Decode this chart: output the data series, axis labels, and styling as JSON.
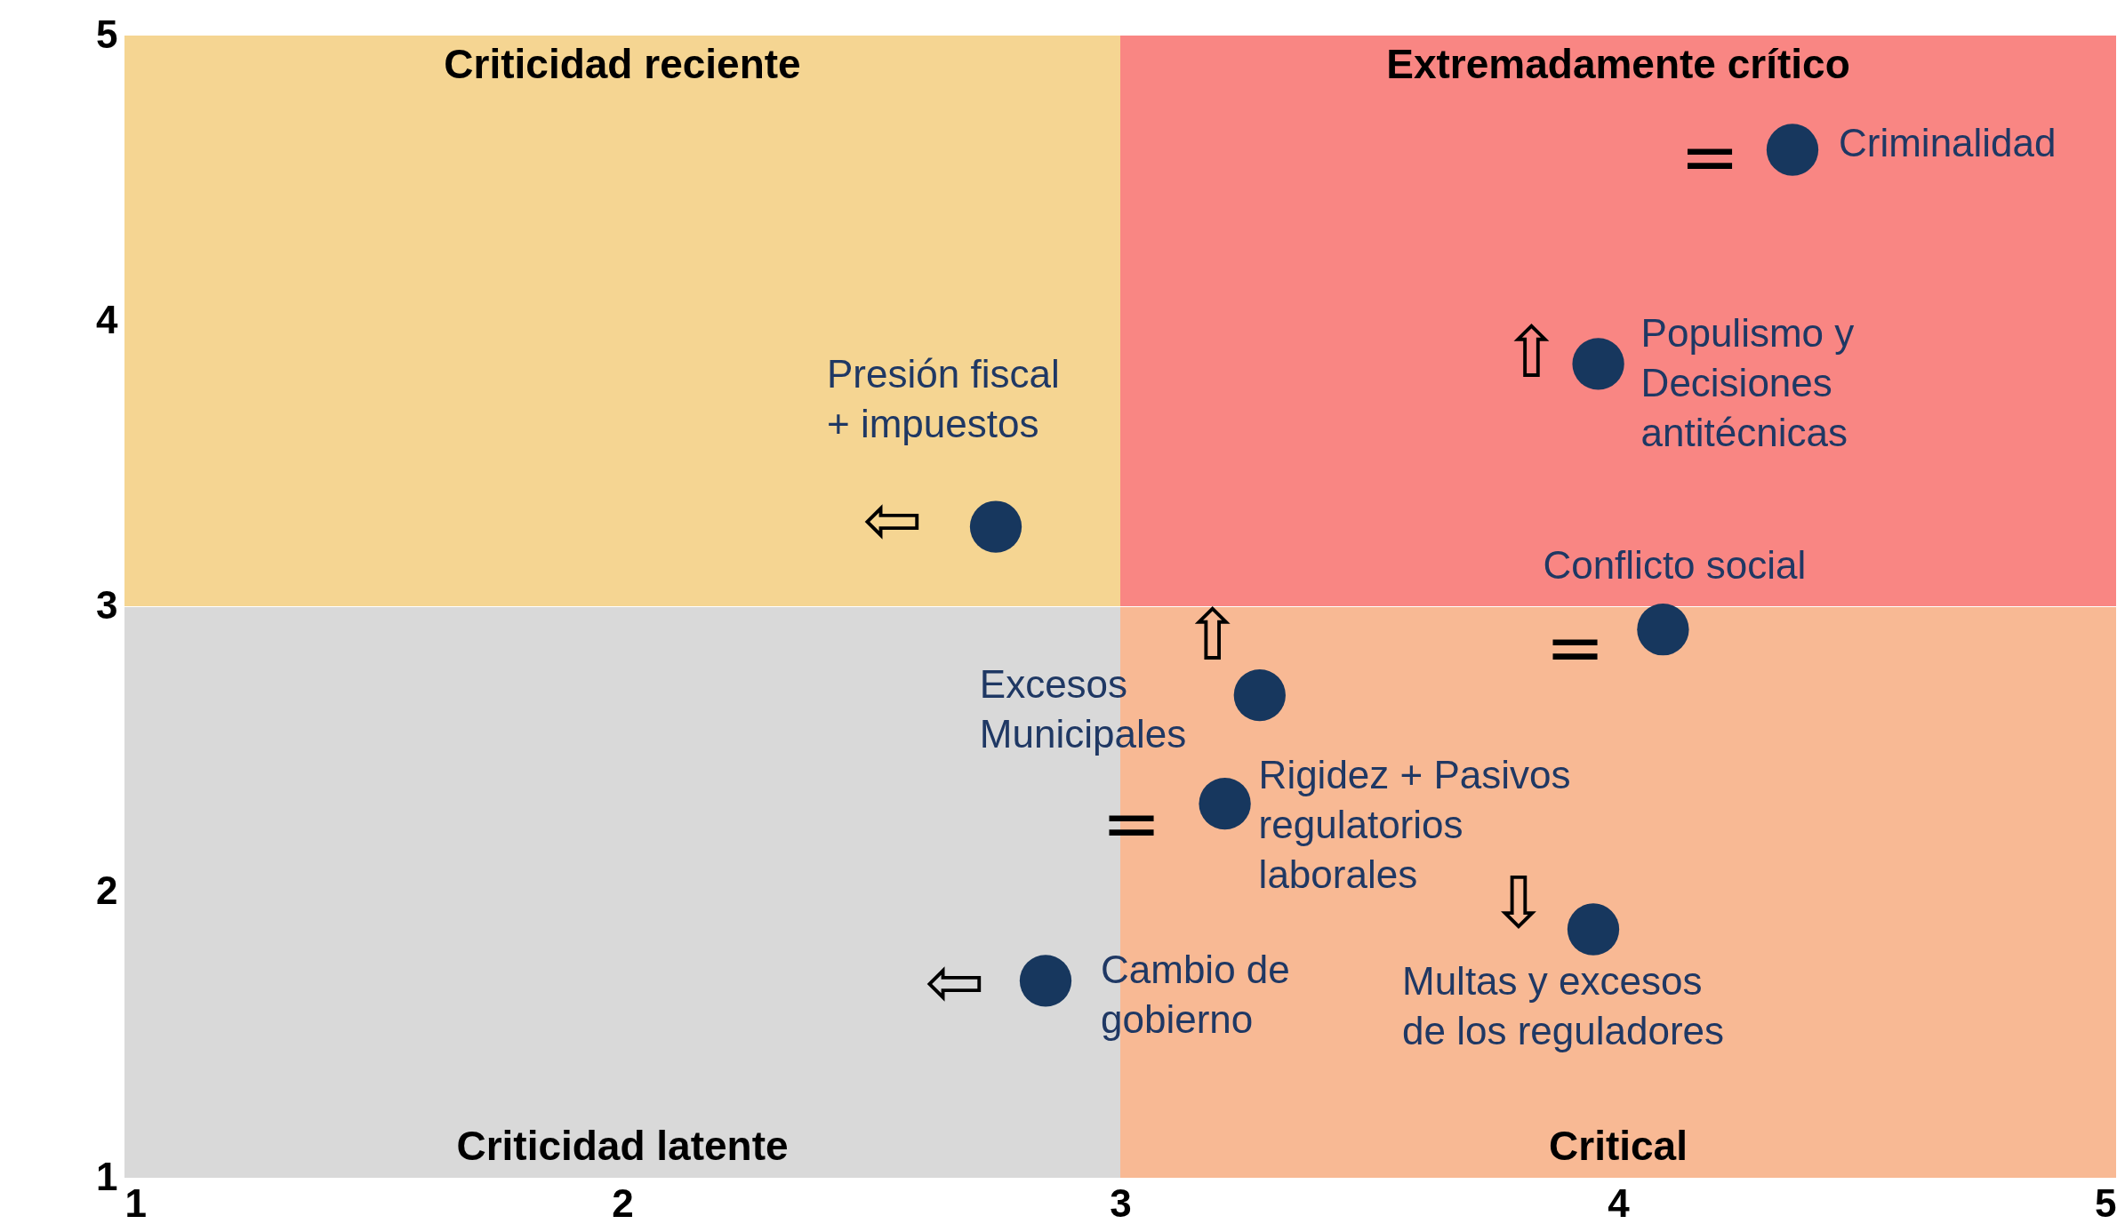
{
  "chart_data": {
    "type": "scatter",
    "xlim": [
      1,
      5
    ],
    "ylim": [
      1,
      5
    ],
    "xticks": [
      1,
      2,
      3,
      4,
      5
    ],
    "yticks": [
      1,
      2,
      3,
      4,
      5
    ],
    "grid": false,
    "marker": "circle",
    "ref_lines": [
      {
        "axis": "y",
        "value": 3,
        "color": "#ffffff"
      }
    ],
    "series": [
      {
        "color": "#17375e",
        "x": [
          4.35,
          3.96,
          2.75,
          4.09,
          3.28,
          3.21,
          3.95,
          2.85
        ],
        "values": [
          4.6,
          3.85,
          3.28,
          2.92,
          2.69,
          2.31,
          1.87,
          1.69
        ]
      }
    ],
    "bands": [
      {
        "axis": "x",
        "from": 1,
        "to": 3,
        "label": "Criticidad reciente",
        "color": "#f5d592"
      },
      {
        "axis": "x",
        "from": 3,
        "to": 5,
        "label": "Extremadamente crítico",
        "color": "#f98683"
      },
      {
        "axis": "x",
        "from": 1,
        "to": 3,
        "label": "Criticidad latente",
        "color": "#d9d9d9"
      },
      {
        "axis": "x",
        "from": 3,
        "to": 5,
        "label": "Critical",
        "color": "#f8b994"
      }
    ],
    "annotations": [
      {
        "text": "Criminalidad",
        "x": 4.35,
        "y": 4.6
      },
      {
        "text": "Populismo y\nDecisiones\nantitécnicas",
        "x": 3.96,
        "y": 3.85
      },
      {
        "text": "Presión fiscal\n+ impuestos",
        "x": 2.75,
        "y": 3.28
      },
      {
        "text": "Conflicto social",
        "x": 4.09,
        "y": 2.92
      },
      {
        "text": "Excesos\nMunicipales",
        "x": 3.28,
        "y": 2.69
      },
      {
        "text": "Rigidez + Pasivos\nregulatorios\nlaborales",
        "x": 3.21,
        "y": 2.31
      },
      {
        "text": "Multas y excesos\nde los reguladores",
        "x": 3.95,
        "y": 1.87
      },
      {
        "text": "Cambio de\ngobierno",
        "x": 2.85,
        "y": 1.69
      },
      "=",
      "⇧",
      "⇦",
      "⇧",
      "=",
      "=",
      "⇩",
      "⇦"
    ]
  }
}
